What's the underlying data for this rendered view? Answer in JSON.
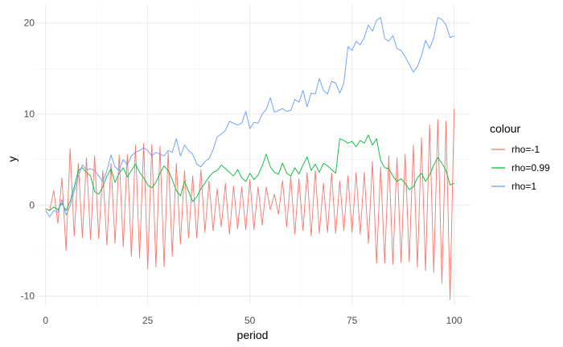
{
  "chart_data": {
    "type": "line",
    "title": "",
    "xlabel": "period",
    "ylabel": "y",
    "xlim": [
      -2.5,
      104
    ],
    "ylim": [
      -11,
      22
    ],
    "grid": true,
    "legend_position": "right",
    "legend_title": "colour",
    "x_ticks": [
      0,
      25,
      50,
      75,
      100
    ],
    "y_ticks": [
      -10,
      0,
      10,
      20
    ],
    "series": [
      {
        "name": "rho=-1",
        "color": "#F8766D",
        "values": [
          -0.4,
          -0.6,
          1.6,
          -2.0,
          3.0,
          -5.0,
          6.2,
          -3.4,
          4.6,
          -3.6,
          5.2,
          -3.8,
          5.4,
          -3.7,
          3.8,
          -4.4,
          4.6,
          -4.2,
          5.5,
          -4.6,
          5.6,
          -5.6,
          6.6,
          -5.8,
          6.8,
          -7.0,
          6.7,
          -6.8,
          6.5,
          -6.8,
          5.8,
          -5.6,
          4.6,
          -4.3,
          3.8,
          -3.6,
          3.2,
          -3.6,
          3.9,
          -3.0,
          2.6,
          -2.8,
          1.8,
          -2.4,
          2.4,
          -3.2,
          2.1,
          -2.6,
          2.0,
          -2.7,
          2.8,
          -2.7,
          2.0,
          -2.2,
          2.0,
          -0.5,
          1.2,
          -1.0,
          2.7,
          -2.4,
          3.1,
          -3.2,
          2.9,
          -2.8,
          3.6,
          -3.4,
          3.8,
          -3.1,
          2.4,
          -3.0,
          3.5,
          -3.1,
          2.6,
          -2.8,
          3.2,
          -3.0,
          3.6,
          -3.2,
          3.6,
          -4.2,
          4.8,
          -6.4,
          4.2,
          -6.4,
          5.4,
          -6.5,
          5.2,
          -6.3,
          5.6,
          -6.2,
          6.6,
          -6.8,
          7.4,
          -7.2,
          8.8,
          -7.4,
          9.4,
          -8.6,
          9.2,
          -10.4,
          10.6
        ]
      },
      {
        "name": "rho=0.99",
        "color": "#00BA38",
        "values": [
          -0.4,
          -0.6,
          -0.2,
          -0.5,
          0.2,
          -0.6,
          0.4,
          2.0,
          3.8,
          4.1,
          3.6,
          3.2,
          1.5,
          1.2,
          2.0,
          3.2,
          4.0,
          2.5,
          3.5,
          4.1,
          3.1,
          3.8,
          4.5,
          3.6,
          3.0,
          2.2,
          1.9,
          2.5,
          3.5,
          4.3,
          3.8,
          2.8,
          1.6,
          1.0,
          2.6,
          1.5,
          0.4,
          0.9,
          1.8,
          2.4,
          3.1,
          3.6,
          3.8,
          4.4,
          4.0,
          3.6,
          3.2,
          3.9,
          3.0,
          2.6,
          3.5,
          2.8,
          3.3,
          4.3,
          5.6,
          4.2,
          3.6,
          3.4,
          4.6,
          3.5,
          3.2,
          4.1,
          3.4,
          4.4,
          5.3,
          3.8,
          4.5,
          3.6,
          4.6,
          4.3,
          3.9,
          3.5,
          7.3,
          7.1,
          6.8,
          7.0,
          6.4,
          7.1,
          6.8,
          7.7,
          6.6,
          7.3,
          4.9,
          4.1,
          4.0,
          3.2,
          2.6,
          2.9,
          2.4,
          1.7,
          2.0,
          3.0,
          3.5,
          2.6,
          3.3,
          4.4,
          5.2,
          4.6,
          3.8,
          2.2,
          2.4
        ]
      },
      {
        "name": "rho=1",
        "color": "#619CFF",
        "values": [
          -0.6,
          -1.3,
          -0.6,
          -0.8,
          0.6,
          -1.1,
          -0.1,
          1.5,
          3.2,
          4.4,
          3.9,
          4.0,
          3.8,
          3.2,
          2.6,
          3.8,
          5.5,
          4.2,
          3.8,
          5.0,
          4.4,
          5.4,
          5.8,
          6.0,
          6.3,
          6.0,
          5.4,
          5.8,
          5.6,
          5.4,
          6.0,
          5.8,
          7.3,
          5.4,
          6.6,
          6.0,
          5.6,
          4.5,
          4.2,
          4.8,
          5.1,
          6.1,
          7.5,
          7.8,
          8.2,
          9.2,
          9.0,
          8.8,
          9.0,
          10.3,
          8.4,
          9.1,
          9.0,
          10.0,
          10.5,
          11.8,
          10.2,
          10.4,
          10.6,
          10.3,
          10.4,
          11.6,
          11.3,
          12.6,
          10.8,
          12.3,
          12.2,
          13.9,
          12.6,
          12.2,
          13.6,
          13.4,
          12.3,
          13.4,
          17.4,
          17.0,
          18.0,
          17.6,
          18.4,
          19.8,
          19.1,
          20.3,
          20.6,
          18.3,
          18.0,
          18.6,
          17.2,
          17.0,
          16.3,
          15.5,
          14.6,
          15.2,
          16.4,
          18.1,
          17.2,
          18.4,
          20.6,
          20.4,
          19.8,
          18.4,
          18.6
        ]
      }
    ]
  }
}
